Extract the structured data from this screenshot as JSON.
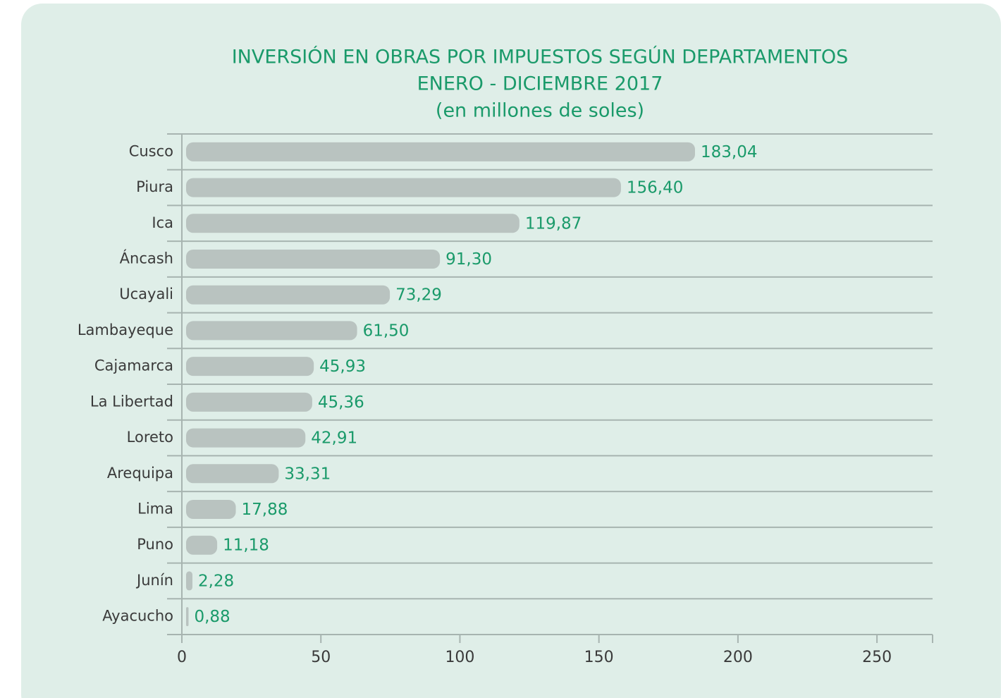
{
  "chart_data": {
    "type": "bar",
    "orientation": "horizontal",
    "title": "INVERSIÓN EN OBRAS POR IMPUESTOS SEGÚN DEPARTAMENTOS",
    "subtitle": "ENERO - DICIEMBRE 2017",
    "units": "(en millones de soles)",
    "categories": [
      "Cusco",
      "Piura",
      "Ica",
      "Áncash",
      "Ucayali",
      "Lambayeque",
      "Cajamarca",
      "La Libertad",
      "Loreto",
      "Arequipa",
      "Lima",
      "Puno",
      "Junín",
      "Ayacucho"
    ],
    "values": [
      183.04,
      156.4,
      119.87,
      91.3,
      73.29,
      61.5,
      45.93,
      45.36,
      42.91,
      33.31,
      17.88,
      11.18,
      2.28,
      0.88
    ],
    "value_labels": [
      "183,04",
      "156,40",
      "119,87",
      "91,30",
      "73,29",
      "61,50",
      "45,93",
      "45,36",
      "42,91",
      "33,31",
      "17,88",
      "11,18",
      "2,28",
      "0,88"
    ],
    "color": "#b9c3c0",
    "label_color": "#1a9a6a",
    "xlim": [
      0,
      270
    ],
    "xticks": [
      0,
      50,
      100,
      150,
      200,
      250
    ],
    "grid": true
  }
}
